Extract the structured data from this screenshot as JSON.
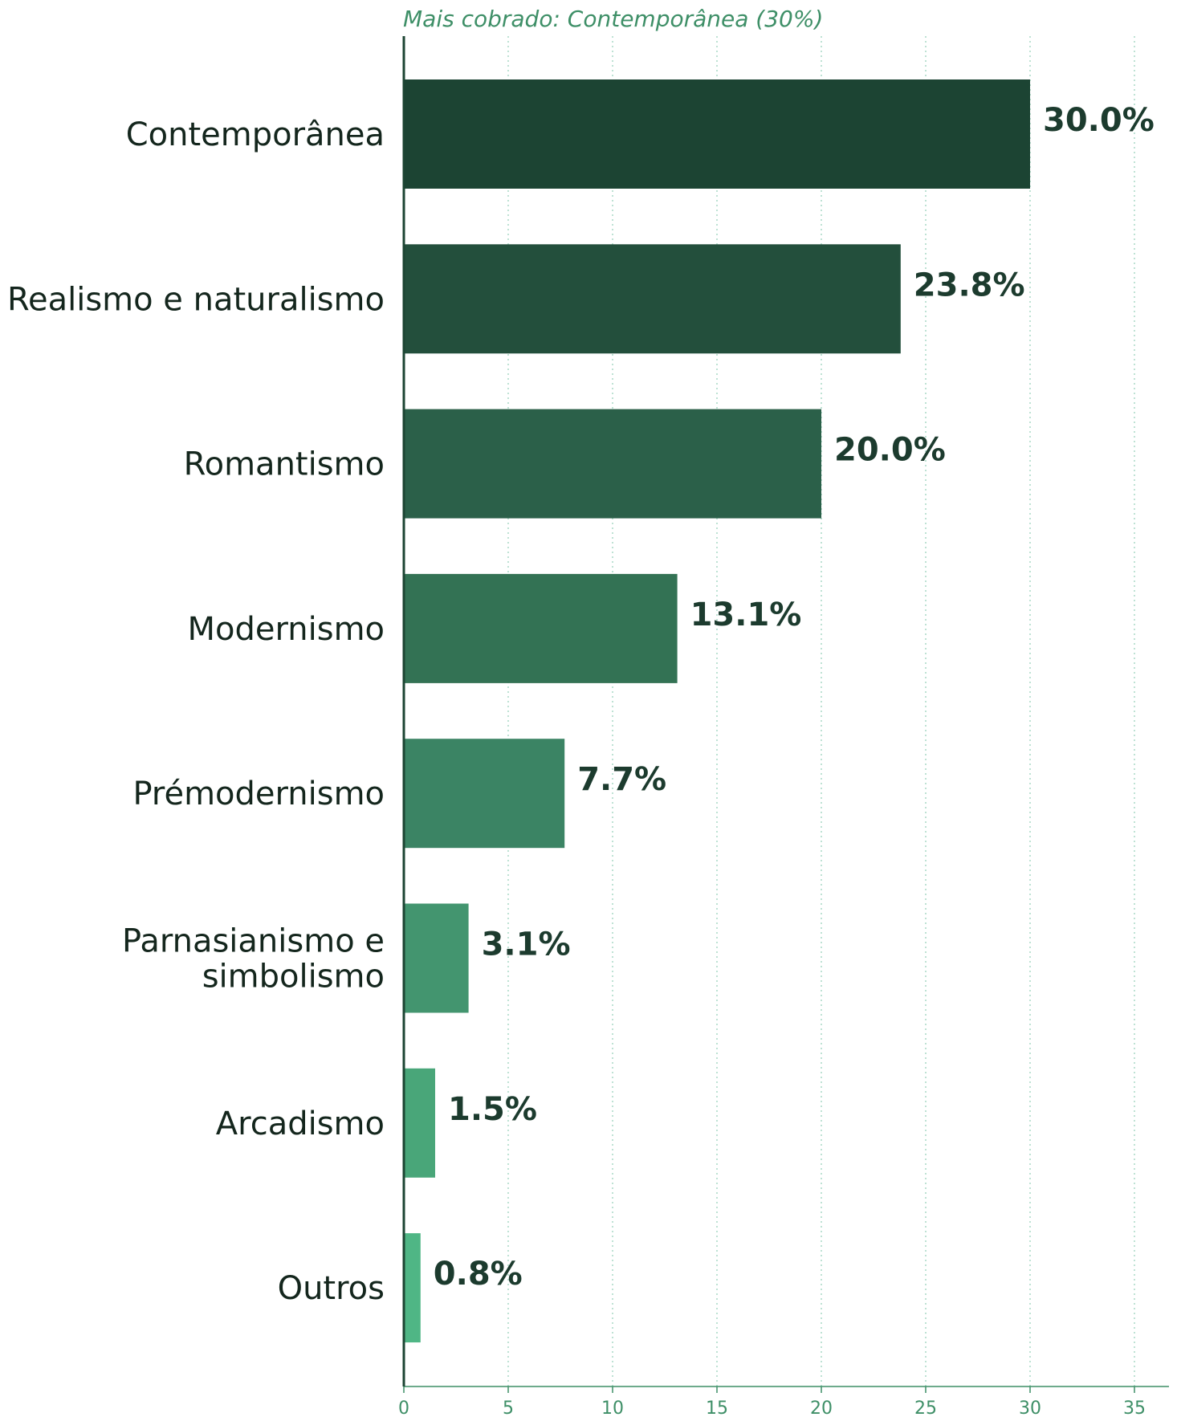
{
  "chart_data": {
    "type": "bar",
    "orientation": "horizontal",
    "subtitle": "Mais cobrado: Contemporânea (30%)",
    "xlabel": "",
    "ylabel": "",
    "xlim": [
      0,
      36.6
    ],
    "xticks": [
      0,
      5,
      10,
      15,
      20,
      25,
      30,
      35
    ],
    "grid": "vertical dotted",
    "categories": [
      [
        "Contemporânea"
      ],
      [
        "Realismo e naturalismo"
      ],
      [
        "Romantismo"
      ],
      [
        "Modernismo"
      ],
      [
        "Prémodernismo"
      ],
      [
        "Parnasianismo e",
        "simbolismo"
      ],
      [
        "Arcadismo"
      ],
      [
        "Outros"
      ]
    ],
    "values": [
      30.0,
      23.8,
      20.0,
      13.1,
      7.7,
      3.1,
      1.5,
      0.8
    ],
    "value_labels": [
      "30.0%",
      "23.8%",
      "20.0%",
      "13.1%",
      "7.7%",
      "3.1%",
      "1.5%",
      "0.8%"
    ],
    "bar_colors": [
      "#1c4433",
      "#234f3c",
      "#2b6049",
      "#337254",
      "#3b8464",
      "#43956f",
      "#49a679",
      "#4fb685"
    ]
  },
  "colors": {
    "accent": "#3e8f67",
    "axis": "#1c4433",
    "grid": "#a8d8c6",
    "value_text": "#1c3b2e",
    "tick_text": "#3e8f67"
  }
}
